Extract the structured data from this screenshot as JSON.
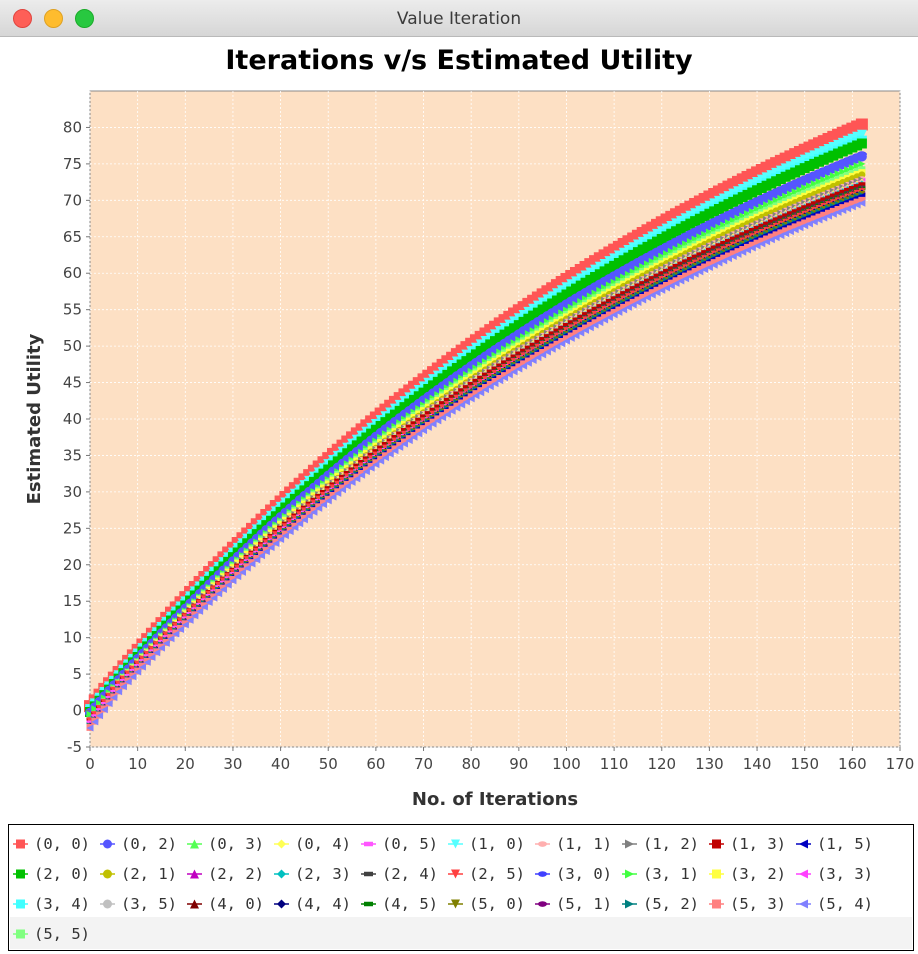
{
  "window": {
    "title": "Value Iteration"
  },
  "chart_data": {
    "type": "scatter",
    "title": "Iterations v/s Estimated Utility",
    "xlabel": "No. of Iterations",
    "ylabel": "Estimated Utility",
    "xlim": [
      0,
      170
    ],
    "ylim": [
      -5,
      85
    ],
    "xticks": [
      0,
      10,
      20,
      30,
      40,
      50,
      60,
      70,
      80,
      90,
      100,
      110,
      120,
      130,
      140,
      150,
      160,
      170
    ],
    "yticks": [
      -5,
      0,
      5,
      10,
      15,
      20,
      25,
      30,
      35,
      40,
      45,
      50,
      55,
      60,
      65,
      70,
      75,
      80
    ],
    "grid": true,
    "background": "#fde0c4",
    "iterations": 162,
    "legend_position": "bottom",
    "series": [
      {
        "name": "(0, 0)",
        "color": "#ff5555",
        "marker": "square",
        "start": 0.6,
        "final": 80.4
      },
      {
        "name": "(0, 2)",
        "color": "#5555ff",
        "marker": "circle",
        "start": -0.3,
        "final": 76.0
      },
      {
        "name": "(0, 3)",
        "color": "#55ff55",
        "marker": "triangle-up",
        "start": -0.4,
        "final": 74.5
      },
      {
        "name": "(0, 4)",
        "color": "#ffff55",
        "marker": "diamond",
        "start": -0.6,
        "final": 72.5
      },
      {
        "name": "(0, 5)",
        "color": "#ff55ff",
        "marker": "rect-h",
        "start": -0.8,
        "final": 71.0
      },
      {
        "name": "(1, 0)",
        "color": "#55ffff",
        "marker": "triangle-down",
        "start": 0.2,
        "final": 79.0
      },
      {
        "name": "(1, 1)",
        "color": "#ffafaf",
        "marker": "ellipse",
        "start": -0.5,
        "final": 73.0
      },
      {
        "name": "(1, 2)",
        "color": "#808080",
        "marker": "triangle-right",
        "start": -0.6,
        "final": 72.8
      },
      {
        "name": "(1, 3)",
        "color": "#c00000",
        "marker": "square",
        "start": -0.7,
        "final": 72.0
      },
      {
        "name": "(1, 5)",
        "color": "#0000c0",
        "marker": "triangle-left",
        "start": -1.2,
        "final": 70.6
      },
      {
        "name": "(2, 0)",
        "color": "#00c000",
        "marker": "square",
        "start": -0.2,
        "final": 77.8
      },
      {
        "name": "(2, 1)",
        "color": "#c0c000",
        "marker": "circle",
        "start": -1.0,
        "final": 73.5
      },
      {
        "name": "(2, 2)",
        "color": "#c000c0",
        "marker": "triangle-up",
        "start": -0.9,
        "final": 71.5
      },
      {
        "name": "(2, 3)",
        "color": "#00c0c0",
        "marker": "diamond",
        "start": -1.0,
        "final": 72.2
      },
      {
        "name": "(2, 4)",
        "color": "#404040",
        "marker": "rect-h",
        "start": -0.8,
        "final": 71.8
      },
      {
        "name": "(2, 5)",
        "color": "#ff4040",
        "marker": "triangle-down",
        "start": -0.6,
        "final": 71.2
      },
      {
        "name": "(3, 0)",
        "color": "#4040ff",
        "marker": "ellipse",
        "start": -0.4,
        "final": 76.3
      },
      {
        "name": "(3, 1)",
        "color": "#40ff40",
        "marker": "triangle-right",
        "start": -0.5,
        "final": 75.0
      },
      {
        "name": "(3, 2)",
        "color": "#ffff40",
        "marker": "square",
        "start": -0.7,
        "final": 73.8
      },
      {
        "name": "(3, 3)",
        "color": "#ff40ff",
        "marker": "triangle-left",
        "start": -0.9,
        "final": 72.6
      },
      {
        "name": "(3, 4)",
        "color": "#40ffff",
        "marker": "square",
        "start": 0.0,
        "final": 78.2
      },
      {
        "name": "(3, 5)",
        "color": "#c0c0c0",
        "marker": "circle",
        "start": -0.8,
        "final": 72.3
      },
      {
        "name": "(4, 0)",
        "color": "#800000",
        "marker": "triangle-up",
        "start": -1.0,
        "final": 71.4
      },
      {
        "name": "(4, 4)",
        "color": "#000080",
        "marker": "diamond",
        "start": -1.3,
        "final": 71.0
      },
      {
        "name": "(4, 5)",
        "color": "#008000",
        "marker": "rect-h",
        "start": -1.1,
        "final": 71.6
      },
      {
        "name": "(5, 0)",
        "color": "#808000",
        "marker": "triangle-down",
        "start": -1.4,
        "final": 70.8
      },
      {
        "name": "(5, 1)",
        "color": "#800080",
        "marker": "ellipse",
        "start": -1.3,
        "final": 70.9
      },
      {
        "name": "(5, 2)",
        "color": "#008080",
        "marker": "triangle-right",
        "start": -1.3,
        "final": 70.7
      },
      {
        "name": "(5, 3)",
        "color": "#ff8080",
        "marker": "square",
        "start": -1.5,
        "final": 70.0
      },
      {
        "name": "(5, 4)",
        "color": "#8080ff",
        "marker": "triangle-left",
        "start": -1.6,
        "final": 69.6
      },
      {
        "name": "(5, 5)",
        "color": "#80ff80",
        "marker": "square",
        "start": -0.6,
        "final": 74.2
      }
    ]
  }
}
